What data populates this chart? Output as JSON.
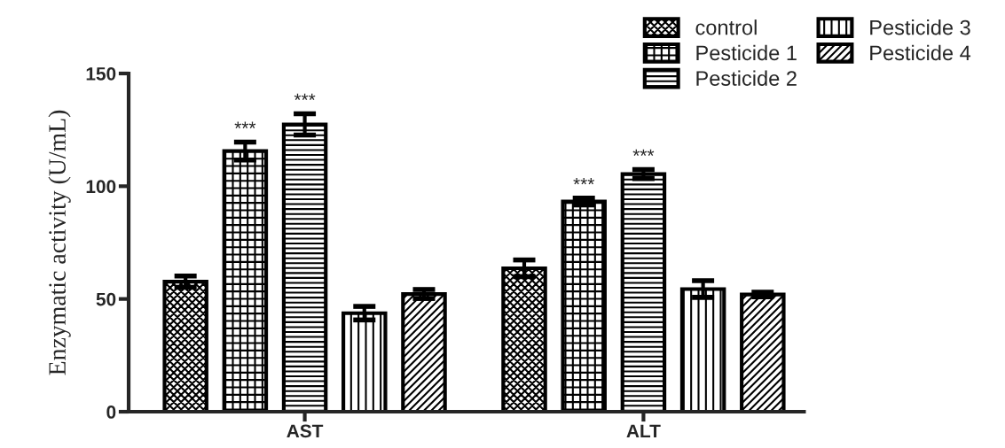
{
  "chart_data": {
    "type": "bar",
    "ylabel": "Enzymatic activity (U/mL)",
    "categories": [
      "AST",
      "ALT"
    ],
    "series": [
      {
        "name": "control",
        "color": "#000000",
        "values": [
          57.7,
          63.6
        ],
        "errors": [
          2.5,
          3.7
        ]
      },
      {
        "name": "Pesticide 1",
        "color": "#000000",
        "values": [
          115.6,
          93.2
        ],
        "errors": [
          4,
          1.5
        ],
        "value_labels": [
          "***",
          "***"
        ]
      },
      {
        "name": "Pesticide 2",
        "color": "#000000",
        "values": [
          127.4,
          105.4
        ],
        "errors": [
          4.7,
          2
        ],
        "value_labels": [
          "***",
          "***"
        ]
      },
      {
        "name": "Pesticide 3",
        "color": "#000000",
        "values": [
          43.7,
          54.4
        ],
        "errors": [
          3,
          3.7
        ]
      },
      {
        "name": "Pesticide 4",
        "color": "#000000",
        "values": [
          52.2,
          52.0
        ],
        "errors": [
          2,
          1
        ]
      }
    ],
    "ylim": [
      0,
      150
    ],
    "yticks": [
      0,
      50,
      100,
      150
    ],
    "grid": false,
    "legend": "top right"
  }
}
